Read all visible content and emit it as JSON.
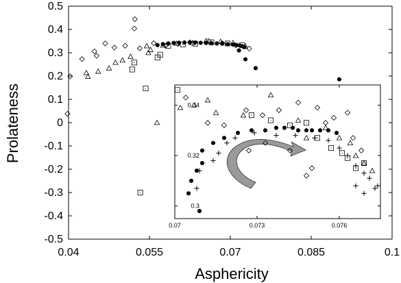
{
  "chart_data": [
    {
      "type": "scatter",
      "xlabel": "Asphericity",
      "ylabel": "Prolateness",
      "xlim": [
        0.04,
        0.1
      ],
      "ylim": [
        -0.5,
        0.5
      ],
      "x_ticks": [
        "0.04",
        "0.055",
        "0.07",
        "0.085",
        "0.1"
      ],
      "y_ticks": [
        "0.5",
        "0.4",
        "0.3",
        "0.2",
        "0.1",
        "0",
        "-0.1",
        "-0.2",
        "-0.3",
        "-0.4",
        "-0.5"
      ],
      "grid": false,
      "series": [
        {
          "marker": "filled-circle",
          "points": [
            [
              0.0565,
              0.333
            ],
            [
              0.0575,
              0.337
            ],
            [
              0.0585,
              0.34
            ],
            [
              0.0595,
              0.342
            ],
            [
              0.0605,
              0.343
            ],
            [
              0.0615,
              0.344
            ],
            [
              0.0625,
              0.344
            ],
            [
              0.0635,
              0.344
            ],
            [
              0.0645,
              0.343
            ],
            [
              0.0655,
              0.342
            ],
            [
              0.0665,
              0.341
            ],
            [
              0.0675,
              0.34
            ],
            [
              0.0685,
              0.339
            ],
            [
              0.0695,
              0.337
            ],
            [
              0.0705,
              0.335
            ],
            [
              0.0712,
              0.333
            ],
            [
              0.0718,
              0.331
            ],
            [
              0.0722,
              0.328
            ],
            [
              0.0726,
              0.324
            ],
            [
              0.0716,
              0.31
            ],
            [
              0.0728,
              0.272
            ],
            [
              0.0747,
              0.234
            ],
            [
              0.0902,
              0.186
            ]
          ]
        },
        {
          "marker": "diamond",
          "points": [
            [
              0.0403,
              0.199
            ],
            [
              0.0398,
              0.038
            ],
            [
              0.0425,
              0.273
            ],
            [
              0.0448,
              0.306
            ],
            [
              0.0452,
              0.287
            ],
            [
              0.0468,
              0.34
            ],
            [
              0.0485,
              0.322
            ],
            [
              0.0505,
              0.33
            ],
            [
              0.0523,
              0.444
            ],
            [
              0.0522,
              0.404
            ],
            [
              0.0532,
              0.319
            ],
            [
              0.0558,
              0.341
            ],
            [
              0.058,
              0.33
            ],
            [
              0.0603,
              0.338
            ],
            [
              0.0625,
              0.345
            ],
            [
              0.066,
              0.35
            ],
            [
              0.0685,
              0.341
            ],
            [
              0.071,
              0.332
            ],
            [
              0.0735,
              0.318
            ]
          ]
        },
        {
          "marker": "triangle",
          "points": [
            [
              0.0433,
              0.214
            ],
            [
              0.0436,
              0.198
            ],
            [
              0.0455,
              0.22
            ],
            [
              0.0475,
              0.234
            ],
            [
              0.0487,
              0.258
            ],
            [
              0.05,
              0.268
            ],
            [
              0.0515,
              0.284
            ],
            [
              0.0548,
              0.3
            ],
            [
              0.0552,
              0.313
            ],
            [
              0.0545,
              0.329
            ],
            [
              0.0575,
              0.332
            ],
            [
              0.06,
              0.34
            ],
            [
              0.063,
              0.343
            ],
            [
              0.0655,
              0.351
            ],
            [
              0.0682,
              0.348
            ],
            [
              0.0705,
              0.343
            ],
            [
              0.0728,
              0.328
            ],
            [
              0.0564,
              0.0
            ]
          ]
        },
        {
          "marker": "square",
          "points": [
            [
              0.0518,
              0.228
            ],
            [
              0.0522,
              0.258
            ],
            [
              0.0543,
              0.147
            ],
            [
              0.0565,
              0.28
            ],
            [
              0.057,
              0.292
            ],
            [
              0.0585,
              0.33
            ],
            [
              0.0612,
              0.336
            ],
            [
              0.0635,
              0.339
            ],
            [
              0.0665,
              0.345
            ],
            [
              0.0695,
              0.34
            ],
            [
              0.0722,
              0.333
            ],
            [
              0.0533,
              -0.3
            ]
          ]
        }
      ]
    },
    {
      "type": "scatter",
      "x_ticks": [
        "0.07",
        "0.073",
        "0.076"
      ],
      "y_ticks": [
        "0.34",
        "0.32",
        "0.3"
      ],
      "xlim": [
        0.07,
        0.0775
      ],
      "ylim": [
        0.295,
        0.348
      ],
      "series": [
        {
          "marker": "filled-circle",
          "points": [
            [
              0.0709,
              0.298
            ],
            [
              0.0705,
              0.305
            ],
            [
              0.0706,
              0.31
            ],
            [
              0.0708,
              0.314
            ],
            [
              0.071,
              0.317
            ],
            [
              0.071,
              0.322
            ],
            [
              0.0714,
              0.325
            ],
            [
              0.0718,
              0.327
            ],
            [
              0.0723,
              0.329
            ],
            [
              0.0728,
              0.33
            ],
            [
              0.0733,
              0.33
            ],
            [
              0.0737,
              0.331
            ],
            [
              0.074,
              0.331
            ],
            [
              0.0743,
              0.331
            ],
            [
              0.0745,
              0.33
            ],
            [
              0.0748,
              0.33
            ],
            [
              0.075,
              0.33
            ],
            [
              0.0753,
              0.33
            ],
            [
              0.0756,
              0.33
            ],
            [
              0.0759,
              0.329
            ]
          ]
        },
        {
          "marker": "diamond",
          "points": [
            [
              0.0704,
              0.343
            ],
            [
              0.0712,
              0.333
            ],
            [
              0.0718,
              0.332
            ],
            [
              0.0726,
              0.338
            ],
            [
              0.0732,
              0.336
            ],
            [
              0.0738,
              0.338
            ],
            [
              0.0745,
              0.341
            ],
            [
              0.0752,
              0.339
            ],
            [
              0.0755,
              0.333
            ],
            [
              0.0758,
              0.335
            ],
            [
              0.0763,
              0.337
            ],
            [
              0.0765,
              0.327
            ],
            [
              0.0768,
              0.322
            ],
            [
              0.075,
              0.315
            ],
            [
              0.0748,
              0.312
            ],
            [
              0.0742,
              0.322
            ],
            [
              0.0733,
              0.325
            ],
            [
              0.0727,
              0.322
            ]
          ]
        },
        {
          "marker": "triangle",
          "points": [
            [
              0.0702,
              0.339
            ],
            [
              0.0707,
              0.34
            ],
            [
              0.0712,
              0.342
            ],
            [
              0.0715,
              0.337
            ],
            [
              0.0725,
              0.336
            ],
            [
              0.0735,
              0.344
            ],
            [
              0.0745,
              0.334
            ],
            [
              0.0755,
              0.331
            ],
            [
              0.076,
              0.327
            ],
            [
              0.0764,
              0.325
            ],
            [
              0.0766,
              0.32
            ],
            [
              0.0769,
              0.317
            ],
            [
              0.0772,
              0.314
            ],
            [
              0.0748,
              0.327
            ]
          ]
        },
        {
          "marker": "square",
          "points": [
            [
              0.0701,
              0.346
            ],
            [
              0.0728,
              0.336
            ],
            [
              0.0735,
              0.334
            ],
            [
              0.0742,
              0.332
            ],
            [
              0.0748,
              0.333
            ],
            [
              0.0752,
              0.327
            ],
            [
              0.0757,
              0.323
            ],
            [
              0.0761,
              0.321
            ],
            [
              0.0763,
              0.319
            ],
            [
              0.0766,
              0.315
            ],
            [
              0.0769,
              0.317
            ]
          ]
        },
        {
          "marker": "plus",
          "points": [
            [
              0.0708,
              0.307
            ],
            [
              0.0709,
              0.314
            ],
            [
              0.0714,
              0.318
            ],
            [
              0.0716,
              0.321
            ],
            [
              0.0719,
              0.325
            ],
            [
              0.0722,
              0.327
            ],
            [
              0.0729,
              0.329
            ],
            [
              0.0737,
              0.328
            ],
            [
              0.0744,
              0.328
            ],
            [
              0.0751,
              0.327
            ],
            [
              0.0756,
              0.326
            ],
            [
              0.076,
              0.323
            ],
            [
              0.0763,
              0.32
            ],
            [
              0.0766,
              0.316
            ],
            [
              0.0769,
              0.313
            ],
            [
              0.0771,
              0.311
            ],
            [
              0.0769,
              0.305
            ],
            [
              0.0773,
              0.307
            ],
            [
              0.0774,
              0.308
            ],
            [
              0.0766,
              0.308
            ]
          ]
        }
      ]
    }
  ]
}
